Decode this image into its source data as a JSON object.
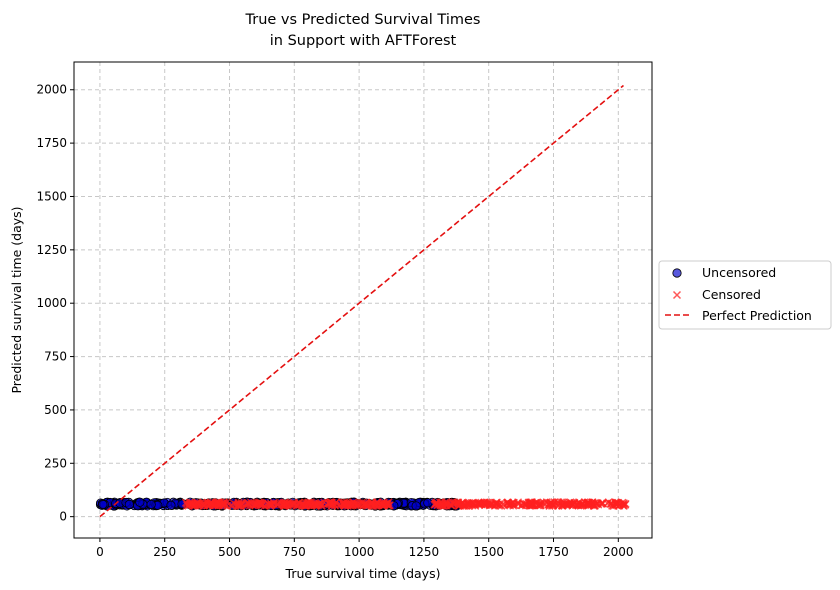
{
  "chart_data": {
    "type": "scatter",
    "title": [
      "True vs Predicted Survival Times",
      "in Support with AFTForest"
    ],
    "xlabel": "True survival time (days)",
    "ylabel": "Predicted survival time (days)",
    "xlim": [
      -100,
      2130
    ],
    "ylim": [
      -100,
      2130
    ],
    "xticks": [
      0,
      250,
      500,
      750,
      1000,
      1250,
      1500,
      1750,
      2000
    ],
    "yticks": [
      0,
      250,
      500,
      750,
      1000,
      1250,
      1500,
      1750,
      2000
    ],
    "grid": true,
    "grid_style": "dashed",
    "legend_position": "outside right, center",
    "colors": {
      "uncensored": "#0000cc",
      "censored": "#ff2020",
      "perfect": "#e41010",
      "grid": "#c8c8c8"
    },
    "series": [
      {
        "name": "Uncensored",
        "marker": "circle",
        "x_range": [
          0,
          1380
        ],
        "y_range": [
          50,
          68
        ],
        "x_clusters": [
          [
            0,
            330
          ],
          [
            345,
            1100
          ],
          [
            1105,
            1380
          ]
        ]
      },
      {
        "name": "Censored",
        "marker": "x",
        "x_range": [
          330,
          2030
        ],
        "y_range": [
          50,
          68
        ],
        "x_clusters": [
          [
            330,
            1120
          ],
          [
            1290,
            2030
          ]
        ]
      },
      {
        "name": "Perfect Prediction",
        "type": "line",
        "line_style": "dashed",
        "x": [
          0,
          2020
        ],
        "y": [
          0,
          2020
        ]
      }
    ]
  }
}
